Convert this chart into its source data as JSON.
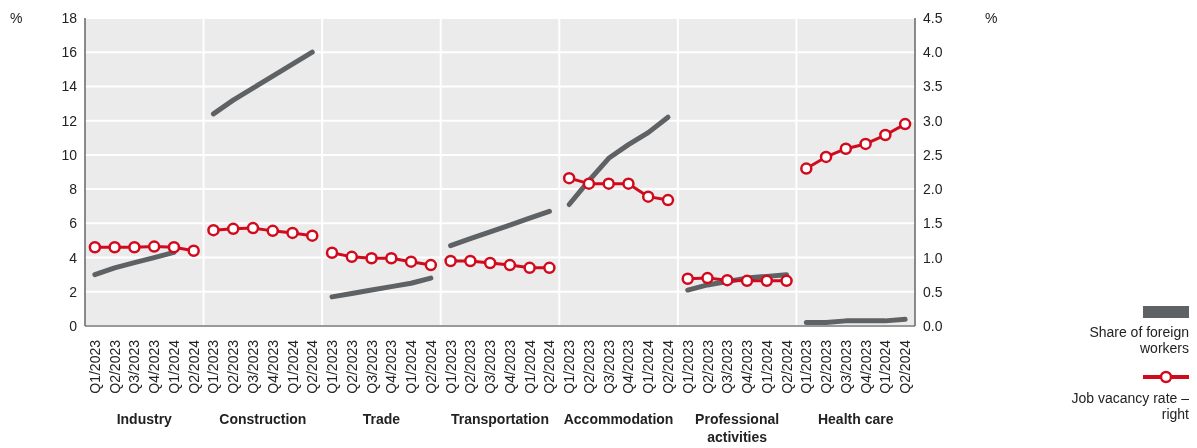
{
  "chart_data": {
    "type": "line",
    "ylabel": "%",
    "y2label": "%",
    "categories": [
      "Q1/2023",
      "Q2/2023",
      "Q3/2023",
      "Q4/2023",
      "Q1/2024",
      "Q2/2024",
      "Q1/2023",
      "Q2/2023",
      "Q3/2023",
      "Q4/2023",
      "Q1/2024",
      "Q2/2024",
      "Q1/2023",
      "Q2/2023",
      "Q3/2023",
      "Q4/2023",
      "Q1/2024",
      "Q2/2024",
      "Q1/2023",
      "Q2/2023",
      "Q3/2023",
      "Q4/2023",
      "Q1/2024",
      "Q2/2024",
      "Q1/2023",
      "Q2/2023",
      "Q3/2023",
      "Q4/2023",
      "Q1/2024",
      "Q2/2024",
      "Q1/2023",
      "Q2/2023",
      "Q3/2023",
      "Q4/2023",
      "Q1/2024",
      "Q2/2024",
      "Q1/2023",
      "Q2/2023",
      "Q3/2023",
      "Q4/2023",
      "Q1/2024",
      "Q2/2024"
    ],
    "annotations": [
      "Industry",
      "Construction",
      "Trade",
      "Transportation",
      "Accommodation",
      "Professional activities",
      "Health care"
    ],
    "series": [
      {
        "name": "Share of foreign workers",
        "color": "#5f6264",
        "marker": "none",
        "values": [
          3.0,
          3.4,
          3.7,
          4.0,
          4.3,
          null,
          null,
          null,
          null,
          null,
          null,
          null,
          null,
          null,
          null,
          null,
          null,
          null,
          null,
          null,
          null,
          null,
          null,
          null,
          null,
          null,
          null,
          null,
          null,
          null,
          null,
          null,
          null,
          null,
          null,
          null,
          null,
          null,
          null,
          null,
          null,
          null
        ]
      },
      {
        "type": "line",
        "color": "#5f6264",
        "marker": "none",
        "values": [
          null,
          null,
          null,
          null,
          null,
          null,
          12.4,
          13.2,
          13.9,
          14.6,
          15.3,
          16.0,
          null,
          null,
          null,
          null,
          null,
          null,
          null,
          null,
          null,
          null,
          null,
          null,
          null,
          null,
          null,
          null,
          null,
          null,
          null,
          null,
          null,
          null,
          null,
          null,
          null,
          null,
          null,
          null,
          null,
          null
        ]
      },
      {
        "type": "line",
        "color": "#5f6264",
        "marker": "none",
        "values": [
          null,
          null,
          null,
          null,
          null,
          null,
          null,
          null,
          null,
          null,
          null,
          null,
          1.7,
          1.9,
          2.1,
          2.3,
          2.5,
          2.8,
          null,
          null,
          null,
          null,
          null,
          null,
          null,
          null,
          null,
          null,
          null,
          null,
          null,
          null,
          null,
          null,
          null,
          null,
          null,
          null,
          null,
          null,
          null,
          null
        ]
      },
      {
        "type": "line",
        "color": "#5f6264",
        "marker": "none",
        "values": [
          null,
          null,
          null,
          null,
          null,
          null,
          null,
          null,
          null,
          null,
          null,
          null,
          null,
          null,
          null,
          null,
          null,
          null,
          4.7,
          5.1,
          5.5,
          5.9,
          6.3,
          6.7,
          null,
          null,
          null,
          null,
          null,
          null,
          null,
          null,
          null,
          null,
          null,
          null,
          null,
          null,
          null,
          null,
          null,
          null
        ]
      },
      {
        "type": "line",
        "color": "#5f6264",
        "marker": "none",
        "values": [
          null,
          null,
          null,
          null,
          null,
          null,
          null,
          null,
          null,
          null,
          null,
          null,
          null,
          null,
          null,
          null,
          null,
          null,
          null,
          null,
          null,
          null,
          null,
          null,
          7.1,
          8.5,
          9.8,
          10.6,
          11.3,
          12.2,
          null,
          null,
          null,
          null,
          null,
          null,
          null,
          null,
          null,
          null,
          null,
          null
        ]
      },
      {
        "type": "line",
        "color": "#5f6264",
        "marker": "none",
        "values": [
          null,
          null,
          null,
          null,
          null,
          null,
          null,
          null,
          null,
          null,
          null,
          null,
          null,
          null,
          null,
          null,
          null,
          null,
          null,
          null,
          null,
          null,
          null,
          null,
          null,
          null,
          null,
          null,
          null,
          null,
          2.1,
          2.4,
          2.6,
          2.8,
          2.9,
          3.0,
          null,
          null,
          null,
          null,
          null,
          null
        ]
      },
      {
        "type": "line",
        "color": "#5f6264",
        "marker": "none",
        "values": [
          null,
          null,
          null,
          null,
          null,
          null,
          null,
          null,
          null,
          null,
          null,
          null,
          null,
          null,
          null,
          null,
          null,
          null,
          null,
          null,
          null,
          null,
          null,
          null,
          null,
          null,
          null,
          null,
          null,
          null,
          null,
          null,
          null,
          null,
          null,
          null,
          0.2,
          0.2,
          0.3,
          0.3,
          0.3,
          0.4
        ]
      },
      {
        "type": "line",
        "name": "Job vacancy rate – right",
        "color": "#d20a1e",
        "marker": "circle",
        "axis": "y2",
        "values": [
          1.15,
          1.15,
          1.15,
          1.16,
          1.15,
          1.1,
          null,
          null,
          null,
          null,
          null,
          null,
          null,
          null,
          null,
          null,
          null,
          null,
          null,
          null,
          null,
          null,
          null,
          null,
          null,
          null,
          null,
          null,
          null,
          null,
          null,
          null,
          null,
          null,
          null,
          null,
          null,
          null,
          null,
          null,
          null,
          null
        ]
      },
      {
        "type": "line",
        "color": "#d20a1e",
        "marker": "circle",
        "axis": "y2",
        "values": [
          null,
          null,
          null,
          null,
          null,
          null,
          1.4,
          1.42,
          1.43,
          1.39,
          1.36,
          1.32,
          null,
          null,
          null,
          null,
          null,
          null,
          null,
          null,
          null,
          null,
          null,
          null,
          null,
          null,
          null,
          null,
          null,
          null,
          null,
          null,
          null,
          null,
          null,
          null,
          null,
          null,
          null,
          null,
          null,
          null
        ]
      },
      {
        "type": "line",
        "color": "#d20a1e",
        "marker": "circle",
        "axis": "y2",
        "values": [
          null,
          null,
          null,
          null,
          null,
          null,
          null,
          null,
          null,
          null,
          null,
          null,
          1.07,
          1.01,
          0.99,
          0.99,
          0.94,
          0.89,
          null,
          null,
          null,
          null,
          null,
          null,
          null,
          null,
          null,
          null,
          null,
          null,
          null,
          null,
          null,
          null,
          null,
          null,
          null,
          null,
          null,
          null,
          null,
          null
        ]
      },
      {
        "type": "line",
        "color": "#d20a1e",
        "marker": "circle",
        "axis": "y2",
        "values": [
          null,
          null,
          null,
          null,
          null,
          null,
          null,
          null,
          null,
          null,
          null,
          null,
          null,
          null,
          null,
          null,
          null,
          null,
          0.95,
          0.95,
          0.92,
          0.89,
          0.85,
          0.85,
          null,
          null,
          null,
          null,
          null,
          null,
          null,
          null,
          null,
          null,
          null,
          null,
          null,
          null,
          null,
          null,
          null,
          null
        ]
      },
      {
        "type": "line",
        "color": "#d20a1e",
        "marker": "circle",
        "axis": "y2",
        "values": [
          null,
          null,
          null,
          null,
          null,
          null,
          null,
          null,
          null,
          null,
          null,
          null,
          null,
          null,
          null,
          null,
          null,
          null,
          null,
          null,
          null,
          null,
          null,
          null,
          2.16,
          2.08,
          2.08,
          2.08,
          1.89,
          1.84,
          null,
          null,
          null,
          null,
          null,
          null,
          null,
          null,
          null,
          null,
          null,
          null
        ]
      },
      {
        "type": "line",
        "color": "#d20a1e",
        "marker": "circle",
        "axis": "y2",
        "values": [
          null,
          null,
          null,
          null,
          null,
          null,
          null,
          null,
          null,
          null,
          null,
          null,
          null,
          null,
          null,
          null,
          null,
          null,
          null,
          null,
          null,
          null,
          null,
          null,
          null,
          null,
          null,
          null,
          null,
          null,
          0.69,
          0.7,
          0.67,
          0.66,
          0.66,
          0.66,
          null,
          null,
          null,
          null,
          null,
          null
        ]
      },
      {
        "type": "line",
        "color": "#d20a1e",
        "marker": "circle",
        "axis": "y2",
        "values": [
          null,
          null,
          null,
          null,
          null,
          null,
          null,
          null,
          null,
          null,
          null,
          null,
          null,
          null,
          null,
          null,
          null,
          null,
          null,
          null,
          null,
          null,
          null,
          null,
          null,
          null,
          null,
          null,
          null,
          null,
          null,
          null,
          null,
          null,
          null,
          null,
          2.3,
          2.47,
          2.59,
          2.66,
          2.79,
          2.95
        ]
      }
    ],
    "ylim": [
      0,
      18
    ],
    "yticks": [
      0,
      2,
      4,
      6,
      8,
      10,
      12,
      14,
      16,
      18
    ],
    "y2lim": [
      0,
      4.5
    ],
    "y2ticks": [
      {
        "value": 0,
        "label": "0.0"
      },
      {
        "value": 0.5,
        "label": "0.5"
      },
      {
        "value": 1,
        "label": "1.0"
      },
      {
        "value": 1.5,
        "label": "1.5"
      },
      {
        "value": 2,
        "label": "2.0"
      },
      {
        "value": 2.5,
        "label": "2.5"
      },
      {
        "value": 3,
        "label": "3.0"
      },
      {
        "value": 3.5,
        "label": "3.5"
      },
      {
        "value": 4,
        "label": "4.0"
      },
      {
        "value": 4.5,
        "label": "4.5"
      }
    ],
    "grid": "y",
    "legend": "bottom right"
  }
}
